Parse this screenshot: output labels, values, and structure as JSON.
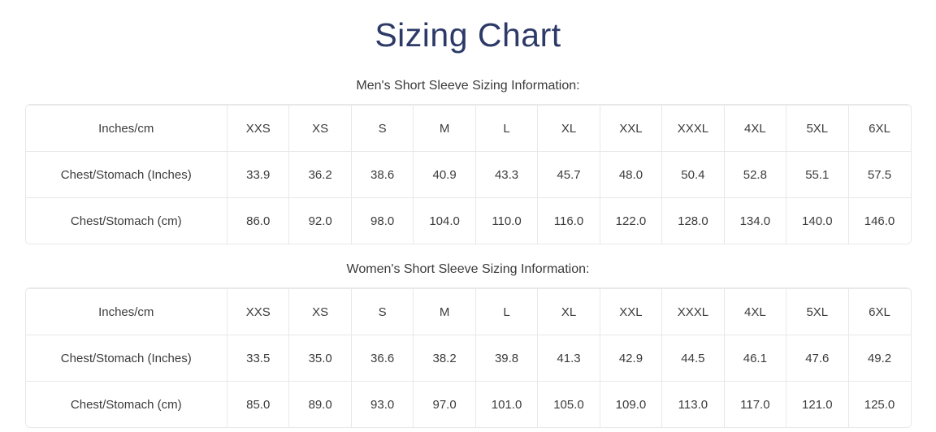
{
  "page": {
    "title": "Sizing Chart",
    "title_color": "#2d3a68",
    "text_color": "#3b3b3b",
    "border_color": "#e8e8e8"
  },
  "tables": [
    {
      "caption": "Men's Short Sleeve Sizing Information:",
      "header": [
        "Inches/cm",
        "XXS",
        "XS",
        "S",
        "M",
        "L",
        "XL",
        "XXL",
        "XXXL",
        "4XL",
        "5XL",
        "6XL"
      ],
      "rows": [
        [
          "Chest/Stomach (Inches)",
          "33.9",
          "36.2",
          "38.6",
          "40.9",
          "43.3",
          "45.7",
          "48.0",
          "50.4",
          "52.8",
          "55.1",
          "57.5"
        ],
        [
          "Chest/Stomach (cm)",
          "86.0",
          "92.0",
          "98.0",
          "104.0",
          "110.0",
          "116.0",
          "122.0",
          "128.0",
          "134.0",
          "140.0",
          "146.0"
        ]
      ]
    },
    {
      "caption": "Women's Short Sleeve Sizing Information:",
      "header": [
        "Inches/cm",
        "XXS",
        "XS",
        "S",
        "M",
        "L",
        "XL",
        "XXL",
        "XXXL",
        "4XL",
        "5XL",
        "6XL"
      ],
      "rows": [
        [
          "Chest/Stomach (Inches)",
          "33.5",
          "35.0",
          "36.6",
          "38.2",
          "39.8",
          "41.3",
          "42.9",
          "44.5",
          "46.1",
          "47.6",
          "49.2"
        ],
        [
          "Chest/Stomach (cm)",
          "85.0",
          "89.0",
          "93.0",
          "97.0",
          "101.0",
          "105.0",
          "109.0",
          "113.0",
          "117.0",
          "121.0",
          "125.0"
        ]
      ]
    }
  ]
}
